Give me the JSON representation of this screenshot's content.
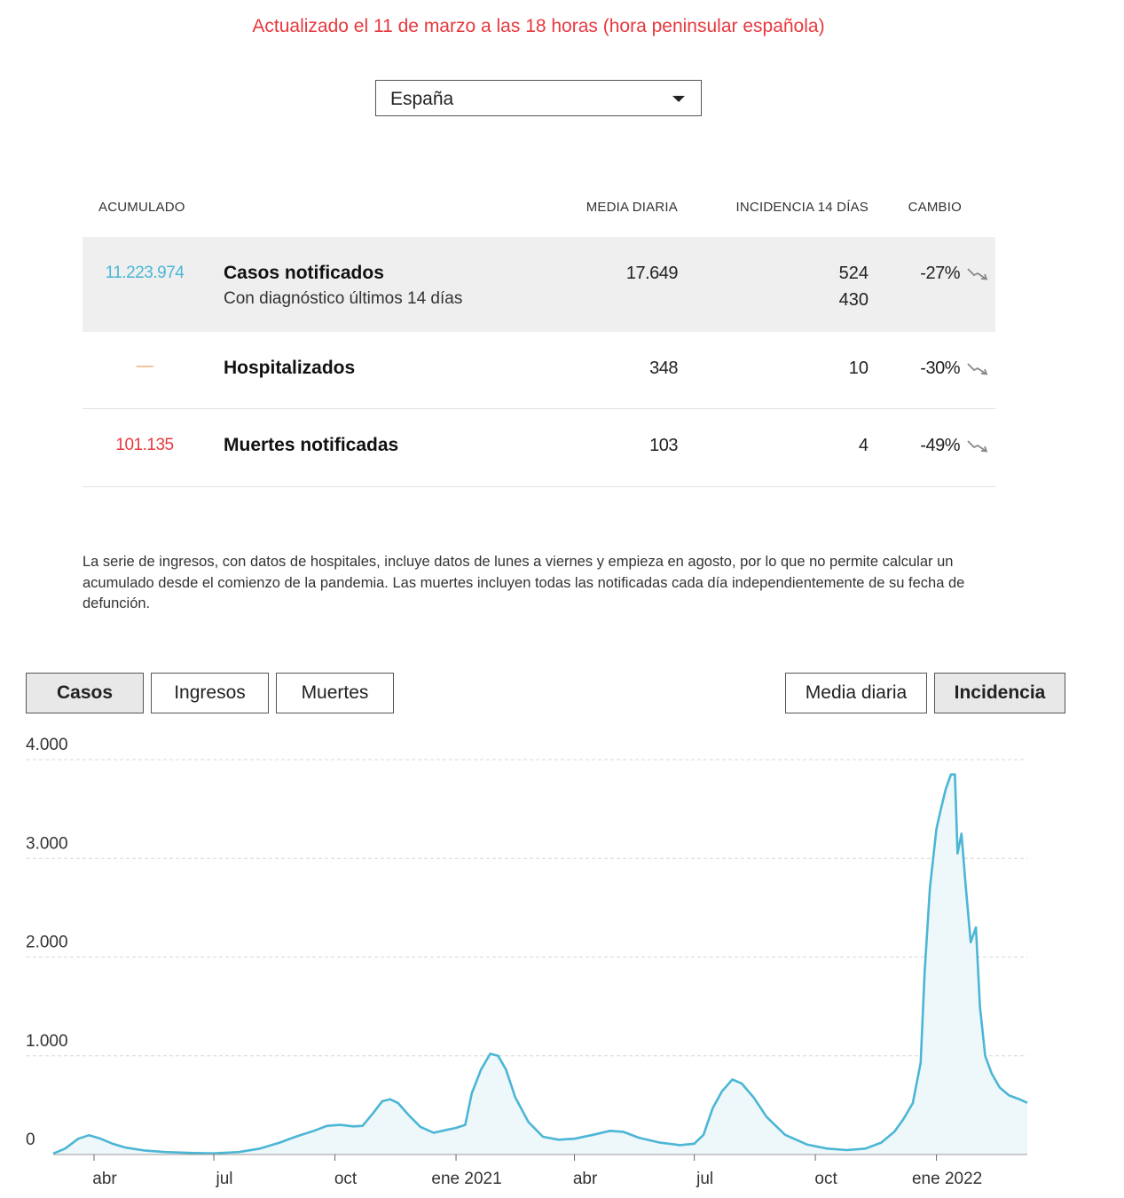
{
  "updated": "Actualizado el 11 de marzo a las 18 horas (hora peninsular española)",
  "region": {
    "selected": "España"
  },
  "table": {
    "headers": {
      "acumulado": "ACUMULADO",
      "media": "MEDIA DIARIA",
      "incidencia": "INCIDENCIA 14 DÍAS",
      "cambio": "CAMBIO"
    },
    "rows": [
      {
        "acumulado": "11.223.974",
        "label": "Casos notificados",
        "media": "17.649",
        "incidencia": "524",
        "cambio": "-27%",
        "acc_color": "#4bb6d5",
        "sub": {
          "label": "Con diagnóstico últimos 14 días",
          "incidencia": "430"
        }
      },
      {
        "acumulado": "—",
        "label": "Hospitalizados",
        "media": "348",
        "incidencia": "10",
        "cambio": "-30%",
        "acc_color": "#f0a060"
      },
      {
        "acumulado": "101.135",
        "label": "Muertes notificadas",
        "media": "103",
        "incidencia": "4",
        "cambio": "-49%",
        "acc_color": "#e8383d"
      }
    ],
    "trend_icon": "trend-down-arrow-icon"
  },
  "note": "La serie de ingresos, con datos de hospitales, incluye datos de lunes a viernes y empieza en agosto, por lo que no permite calcular un acumulado desde el comienzo de la pandemia. Las muertes incluyen todas las notificadas cada día independientemente de su fecha de defunción.",
  "metric_tabs": {
    "items": [
      "Casos",
      "Ingresos",
      "Muertes"
    ],
    "active": 0
  },
  "mode_tabs": {
    "items": [
      "Media diaria",
      "Incidencia"
    ],
    "active": 1
  },
  "chart_data": {
    "type": "area",
    "title": "",
    "xlabel": "",
    "ylabel": "",
    "ylim": [
      0,
      4000
    ],
    "yticks": [
      0,
      1000,
      2000,
      3000,
      4000
    ],
    "ytick_labels": [
      "0",
      "1.000",
      "2.000",
      "3.000",
      "4.000"
    ],
    "xticks": [
      "2020-04-01",
      "2020-07-01",
      "2020-10-01",
      "2021-01-01",
      "2021-04-01",
      "2021-07-01",
      "2021-10-01",
      "2022-01-01"
    ],
    "xtick_labels": [
      "abr",
      "jul",
      "oct",
      "ene 2021",
      "abr",
      "jul",
      "oct",
      "ene 2022"
    ],
    "xlim": [
      "2020-03-01",
      "2022-03-11"
    ],
    "grid": true,
    "line_color": "#4bb6d5",
    "fill_color": "#eef7fa",
    "series": [
      {
        "values": [
          [
            "2020-03-01",
            10
          ],
          [
            "2020-03-10",
            60
          ],
          [
            "2020-03-20",
            160
          ],
          [
            "2020-03-28",
            195
          ],
          [
            "2020-04-05",
            165
          ],
          [
            "2020-04-15",
            110
          ],
          [
            "2020-04-25",
            70
          ],
          [
            "2020-05-10",
            40
          ],
          [
            "2020-05-25",
            25
          ],
          [
            "2020-06-15",
            15
          ],
          [
            "2020-07-01",
            12
          ],
          [
            "2020-07-20",
            25
          ],
          [
            "2020-08-05",
            60
          ],
          [
            "2020-08-20",
            120
          ],
          [
            "2020-09-01",
            180
          ],
          [
            "2020-09-15",
            240
          ],
          [
            "2020-09-25",
            290
          ],
          [
            "2020-10-05",
            300
          ],
          [
            "2020-10-15",
            285
          ],
          [
            "2020-10-22",
            290
          ],
          [
            "2020-10-30",
            420
          ],
          [
            "2020-11-06",
            540
          ],
          [
            "2020-11-12",
            560
          ],
          [
            "2020-11-18",
            520
          ],
          [
            "2020-11-26",
            400
          ],
          [
            "2020-12-05",
            280
          ],
          [
            "2020-12-15",
            220
          ],
          [
            "2020-12-25",
            250
          ],
          [
            "2021-01-01",
            270
          ],
          [
            "2021-01-08",
            300
          ],
          [
            "2021-01-13",
            620
          ],
          [
            "2021-01-20",
            860
          ],
          [
            "2021-01-27",
            1020
          ],
          [
            "2021-02-02",
            1000
          ],
          [
            "2021-02-08",
            860
          ],
          [
            "2021-02-15",
            580
          ],
          [
            "2021-02-25",
            330
          ],
          [
            "2021-03-08",
            180
          ],
          [
            "2021-03-20",
            150
          ],
          [
            "2021-04-01",
            160
          ],
          [
            "2021-04-15",
            200
          ],
          [
            "2021-04-28",
            240
          ],
          [
            "2021-05-08",
            230
          ],
          [
            "2021-05-20",
            170
          ],
          [
            "2021-06-05",
            120
          ],
          [
            "2021-06-20",
            95
          ],
          [
            "2021-07-01",
            110
          ],
          [
            "2021-07-08",
            200
          ],
          [
            "2021-07-15",
            470
          ],
          [
            "2021-07-22",
            640
          ],
          [
            "2021-07-30",
            760
          ],
          [
            "2021-08-06",
            720
          ],
          [
            "2021-08-15",
            580
          ],
          [
            "2021-08-25",
            380
          ],
          [
            "2021-09-08",
            200
          ],
          [
            "2021-09-25",
            100
          ],
          [
            "2021-10-10",
            60
          ],
          [
            "2021-10-25",
            45
          ],
          [
            "2021-11-08",
            60
          ],
          [
            "2021-11-20",
            120
          ],
          [
            "2021-11-30",
            230
          ],
          [
            "2021-12-07",
            360
          ],
          [
            "2021-12-14",
            520
          ],
          [
            "2021-12-20",
            930
          ],
          [
            "2021-12-23",
            1850
          ],
          [
            "2021-12-27",
            2700
          ],
          [
            "2022-01-01",
            3300
          ],
          [
            "2022-01-04",
            3480
          ],
          [
            "2022-01-08",
            3700
          ],
          [
            "2022-01-12",
            3850
          ],
          [
            "2022-01-15",
            3850
          ],
          [
            "2022-01-17",
            3050
          ],
          [
            "2022-01-20",
            3250
          ],
          [
            "2022-01-23",
            2750
          ],
          [
            "2022-01-27",
            2150
          ],
          [
            "2022-01-31",
            2300
          ],
          [
            "2022-02-03",
            1500
          ],
          [
            "2022-02-07",
            1000
          ],
          [
            "2022-02-12",
            820
          ],
          [
            "2022-02-18",
            680
          ],
          [
            "2022-02-25",
            600
          ],
          [
            "2022-03-05",
            560
          ],
          [
            "2022-03-11",
            524
          ]
        ]
      }
    ]
  }
}
